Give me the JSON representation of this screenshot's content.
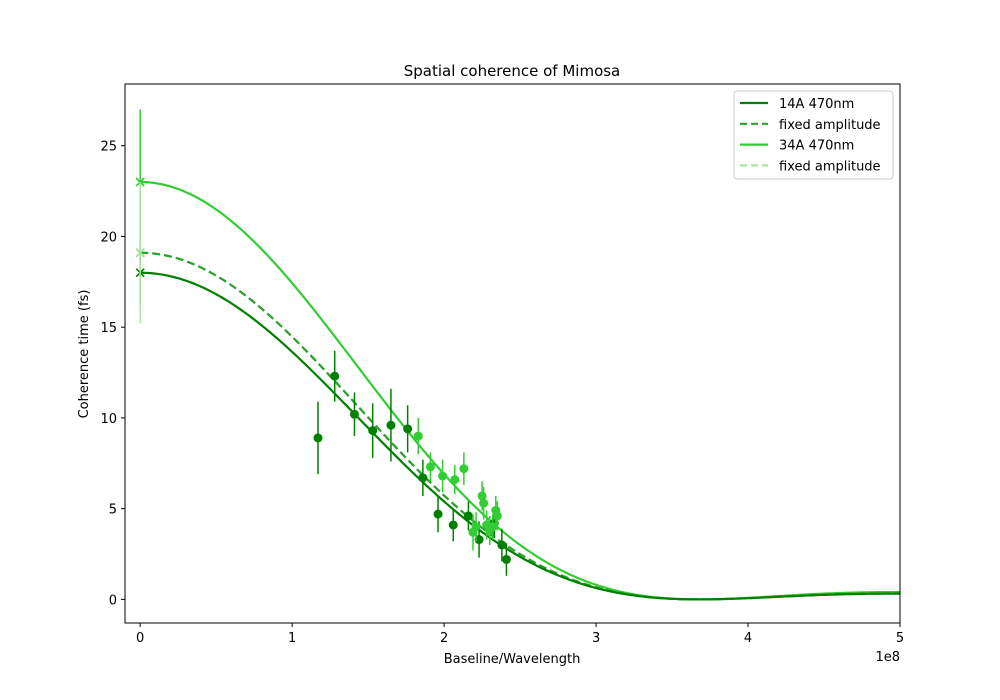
{
  "chart_data": {
    "type": "scatter",
    "title": "Spatial coherence of Mimosa",
    "xlabel": "Baseline/Wavelength",
    "ylabel": "Coherence time (fs)",
    "x_multiplier_label": "1e8",
    "xlim": [
      -1,
      50
    ],
    "ylim": [
      -1.3,
      28.4
    ],
    "xticks": [
      0,
      10,
      20,
      30,
      40,
      50
    ],
    "xtick_labels": [
      "0",
      "1",
      "2",
      "3",
      "4",
      "5"
    ],
    "yticks": [
      0,
      5,
      10,
      15,
      20,
      25
    ],
    "ytick_labels": [
      "0",
      "5",
      "10",
      "15",
      "20",
      "25"
    ],
    "grid": false,
    "legend_position": "top-right",
    "legend": [
      {
        "label": "14A 470nm",
        "color": "#008000",
        "dash": "solid"
      },
      {
        "label": "fixed amplitude",
        "color": "#2ca02c",
        "dash": "dashed"
      },
      {
        "label": "34A 470nm",
        "color": "#32cd32",
        "dash": "solid"
      },
      {
        "label": "fixed amplitude",
        "color": "#a8e6a0",
        "dash": "dashed"
      }
    ],
    "series": [
      {
        "color": "#008000",
        "kind": "points",
        "points": [
          {
            "x": 11.7,
            "y": 8.9,
            "err": 2.0
          },
          {
            "x": 12.8,
            "y": 12.3,
            "err": 1.4
          },
          {
            "x": 14.1,
            "y": 10.2,
            "err": 1.2
          },
          {
            "x": 15.3,
            "y": 9.3,
            "err": 1.5
          },
          {
            "x": 16.5,
            "y": 9.6,
            "err": 2.0
          },
          {
            "x": 17.6,
            "y": 9.4,
            "err": 1.3
          },
          {
            "x": 18.6,
            "y": 6.7,
            "err": 1.0
          },
          {
            "x": 19.6,
            "y": 4.7,
            "err": 1.0
          },
          {
            "x": 20.6,
            "y": 4.1,
            "err": 0.9
          },
          {
            "x": 21.6,
            "y": 4.6,
            "err": 0.8
          },
          {
            "x": 22.3,
            "y": 3.3,
            "err": 1.0
          },
          {
            "x": 23.3,
            "y": 4.2,
            "err": 0.8
          },
          {
            "x": 23.8,
            "y": 3.0,
            "err": 0.9
          },
          {
            "x": 24.1,
            "y": 2.2,
            "err": 0.9
          }
        ]
      },
      {
        "color": "#32cd32",
        "kind": "points",
        "points": [
          {
            "x": 18.3,
            "y": 9.0,
            "err": 1.0
          },
          {
            "x": 19.1,
            "y": 7.3,
            "err": 0.8
          },
          {
            "x": 19.9,
            "y": 6.8,
            "err": 0.9
          },
          {
            "x": 20.7,
            "y": 6.6,
            "err": 0.8
          },
          {
            "x": 21.3,
            "y": 7.2,
            "err": 0.9
          },
          {
            "x": 21.9,
            "y": 3.7,
            "err": 1.0
          },
          {
            "x": 22.1,
            "y": 4.0,
            "err": 0.8
          },
          {
            "x": 22.5,
            "y": 5.7,
            "err": 0.8
          },
          {
            "x": 22.6,
            "y": 5.3,
            "err": 0.9
          },
          {
            "x": 22.8,
            "y": 4.1,
            "err": 0.8
          },
          {
            "x": 23.0,
            "y": 3.8,
            "err": 0.8
          },
          {
            "x": 23.2,
            "y": 4.0,
            "err": 0.7
          },
          {
            "x": 23.4,
            "y": 4.9,
            "err": 0.8
          },
          {
            "x": 23.5,
            "y": 4.6,
            "err": 0.8
          }
        ]
      },
      {
        "color": "#008000",
        "kind": "zero-baseline",
        "points": [
          {
            "x": 0,
            "y": 18.0,
            "err": 1.8
          }
        ]
      },
      {
        "color": "#2ca02c",
        "kind": "zero-baseline",
        "points": [
          {
            "x": 0,
            "y": 19.1,
            "err": 0
          }
        ]
      },
      {
        "color": "#32cd32",
        "kind": "zero-baseline",
        "points": [
          {
            "x": 0,
            "y": 23.0,
            "err": 4.0
          }
        ]
      },
      {
        "color": "#a8e6a0",
        "kind": "zero-baseline",
        "points": [
          {
            "x": 0,
            "y": 19.1,
            "err": 3.9
          }
        ]
      }
    ],
    "fit_curves": [
      {
        "color": "#008000",
        "dash": "solid",
        "amplitude": 18.0,
        "first_zero": 36.8,
        "tail_max": 0.3
      },
      {
        "color": "#2ca02c",
        "dash": "dashed",
        "amplitude": 19.1,
        "first_zero": 36.8,
        "tail_max": 0.35
      },
      {
        "color": "#32cd32",
        "dash": "solid",
        "amplitude": 23.0,
        "first_zero": 36.8,
        "tail_max": 0.42
      },
      {
        "color": "#a8e6a0",
        "dash": "dashed",
        "amplitude": 19.1,
        "first_zero": 36.8,
        "tail_max": 0.35
      }
    ]
  }
}
